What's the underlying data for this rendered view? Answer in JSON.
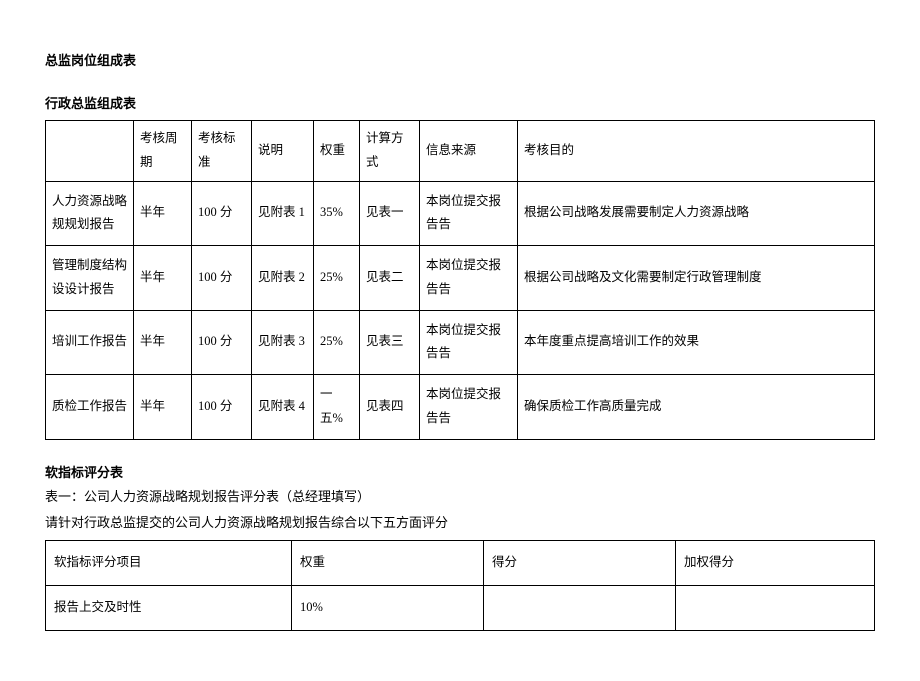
{
  "title1": "总监岗位组成表",
  "title2": "行政总监组成表",
  "table1": {
    "columns": [
      "",
      "考核周期",
      "考核标准",
      "说明",
      "权重",
      "计算方式",
      "信息来源",
      "考核目的"
    ],
    "col_widths": [
      "88px",
      "58px",
      "60px",
      "62px",
      "46px",
      "60px",
      "98px",
      "auto"
    ],
    "rows": [
      [
        "人力资源战略规规划报告",
        "半年",
        "100 分",
        "见附表 1",
        "35%",
        "见表一",
        "本岗位提交报告告",
        "根据公司战略发展需要制定人力资源战略"
      ],
      [
        "管理制度结构设设计报告",
        "半年",
        "100 分",
        "见附表 2",
        "25%",
        "见表二",
        "本岗位提交报告告",
        "根据公司战略及文化需要制定行政管理制度"
      ],
      [
        "培训工作报告",
        "半年",
        "100 分",
        "见附表 3",
        "25%",
        "见表三",
        "本岗位提交报告告",
        "本年度重点提高培训工作的效果"
      ],
      [
        "质检工作报告",
        "半年",
        "100 分",
        "见附表 4",
        "一五%",
        "见表四",
        "本岗位提交报告告",
        "确保质检工作高质量完成"
      ]
    ]
  },
  "section2_title": "软指标评分表",
  "section2_line1": "表一：公司人力资源战略规划报告评分表（总经理填写）",
  "section2_line2": "请针对行政总监提交的公司人力资源战略规划报告综合以下五方面评分",
  "table2": {
    "columns": [
      "软指标评分项目",
      "权重",
      "得分",
      "加权得分"
    ],
    "col_widths": [
      "246px",
      "192px",
      "192px",
      "auto"
    ],
    "rows": [
      [
        "报告上交及时性",
        "10%",
        "",
        ""
      ]
    ]
  }
}
